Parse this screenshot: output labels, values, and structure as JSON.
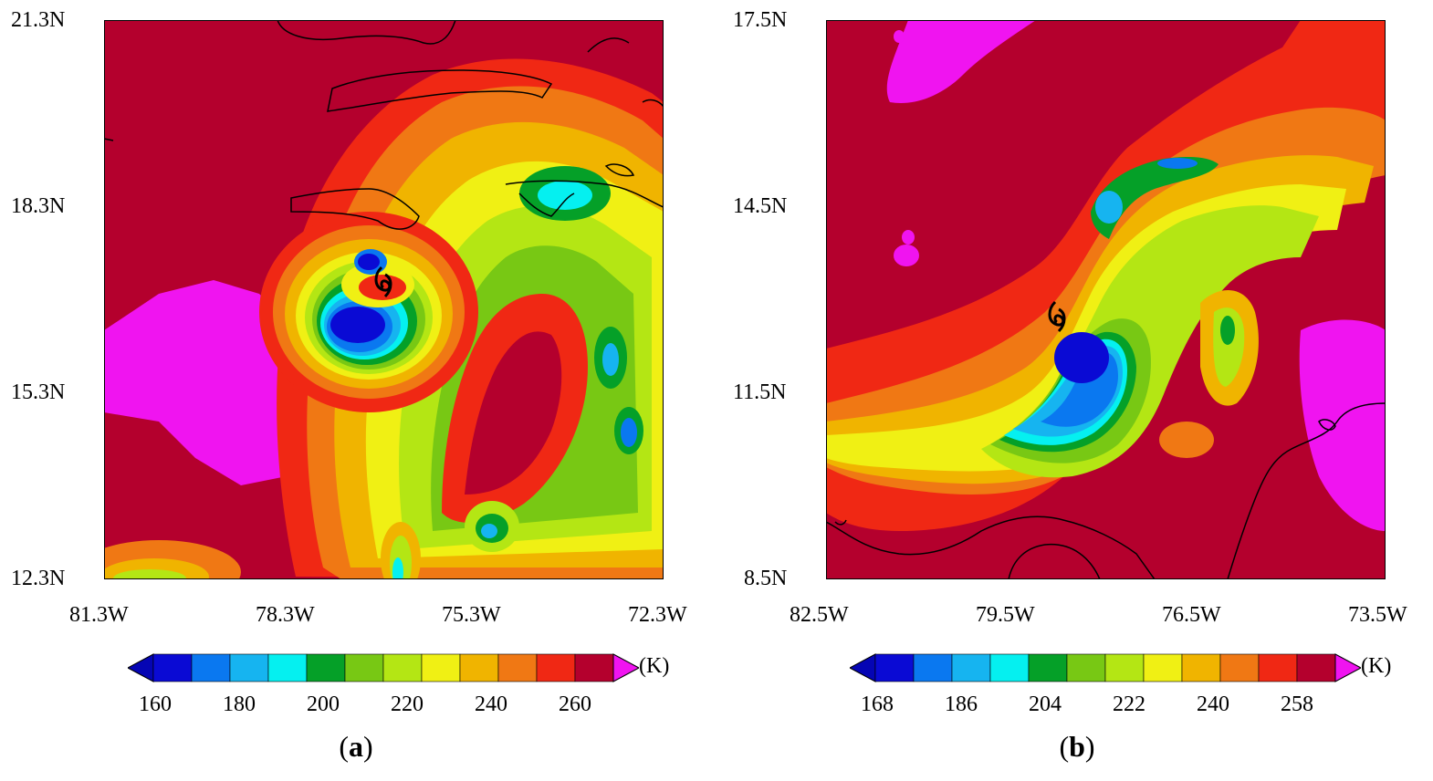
{
  "panels": [
    {
      "id": "a",
      "label_letter": "a",
      "lat_labels": [
        "21.3N",
        "18.3N",
        "15.3N",
        "12.3N"
      ],
      "lon_labels": [
        "81.3W",
        "78.3W",
        "75.3W",
        "72.3W"
      ],
      "colorbar": {
        "unit": "(K)",
        "tick_labels": [
          "160",
          "180",
          "200",
          "220",
          "240",
          "260"
        ],
        "levels": [
          160,
          170,
          180,
          190,
          200,
          210,
          220,
          230,
          240,
          250,
          260,
          270
        ]
      },
      "storm_symbol": "tropical-cyclone-icon"
    },
    {
      "id": "b",
      "label_letter": "b",
      "lat_labels": [
        "17.5N",
        "14.5N",
        "11.5N",
        "8.5N"
      ],
      "lon_labels": [
        "82.5W",
        "79.5W",
        "76.5W",
        "73.5W"
      ],
      "colorbar": {
        "unit": "(K)",
        "tick_labels": [
          "168",
          "186",
          "204",
          "222",
          "240",
          "258"
        ],
        "levels": [
          168,
          177,
          186,
          195,
          204,
          213,
          222,
          231,
          240,
          249,
          258,
          267
        ]
      },
      "storm_symbol": "tropical-cyclone-icon"
    }
  ],
  "colors": {
    "bins": [
      "#0a0ad4",
      "#0a78f0",
      "#16b4f0",
      "#05f0f0",
      "#05a028",
      "#78c814",
      "#b4e614",
      "#f0f014",
      "#f0b400",
      "#f07814",
      "#f02814",
      "#b4002d"
    ],
    "over": "#f014f0",
    "under": "#0505b4",
    "coast": "#000000"
  }
}
